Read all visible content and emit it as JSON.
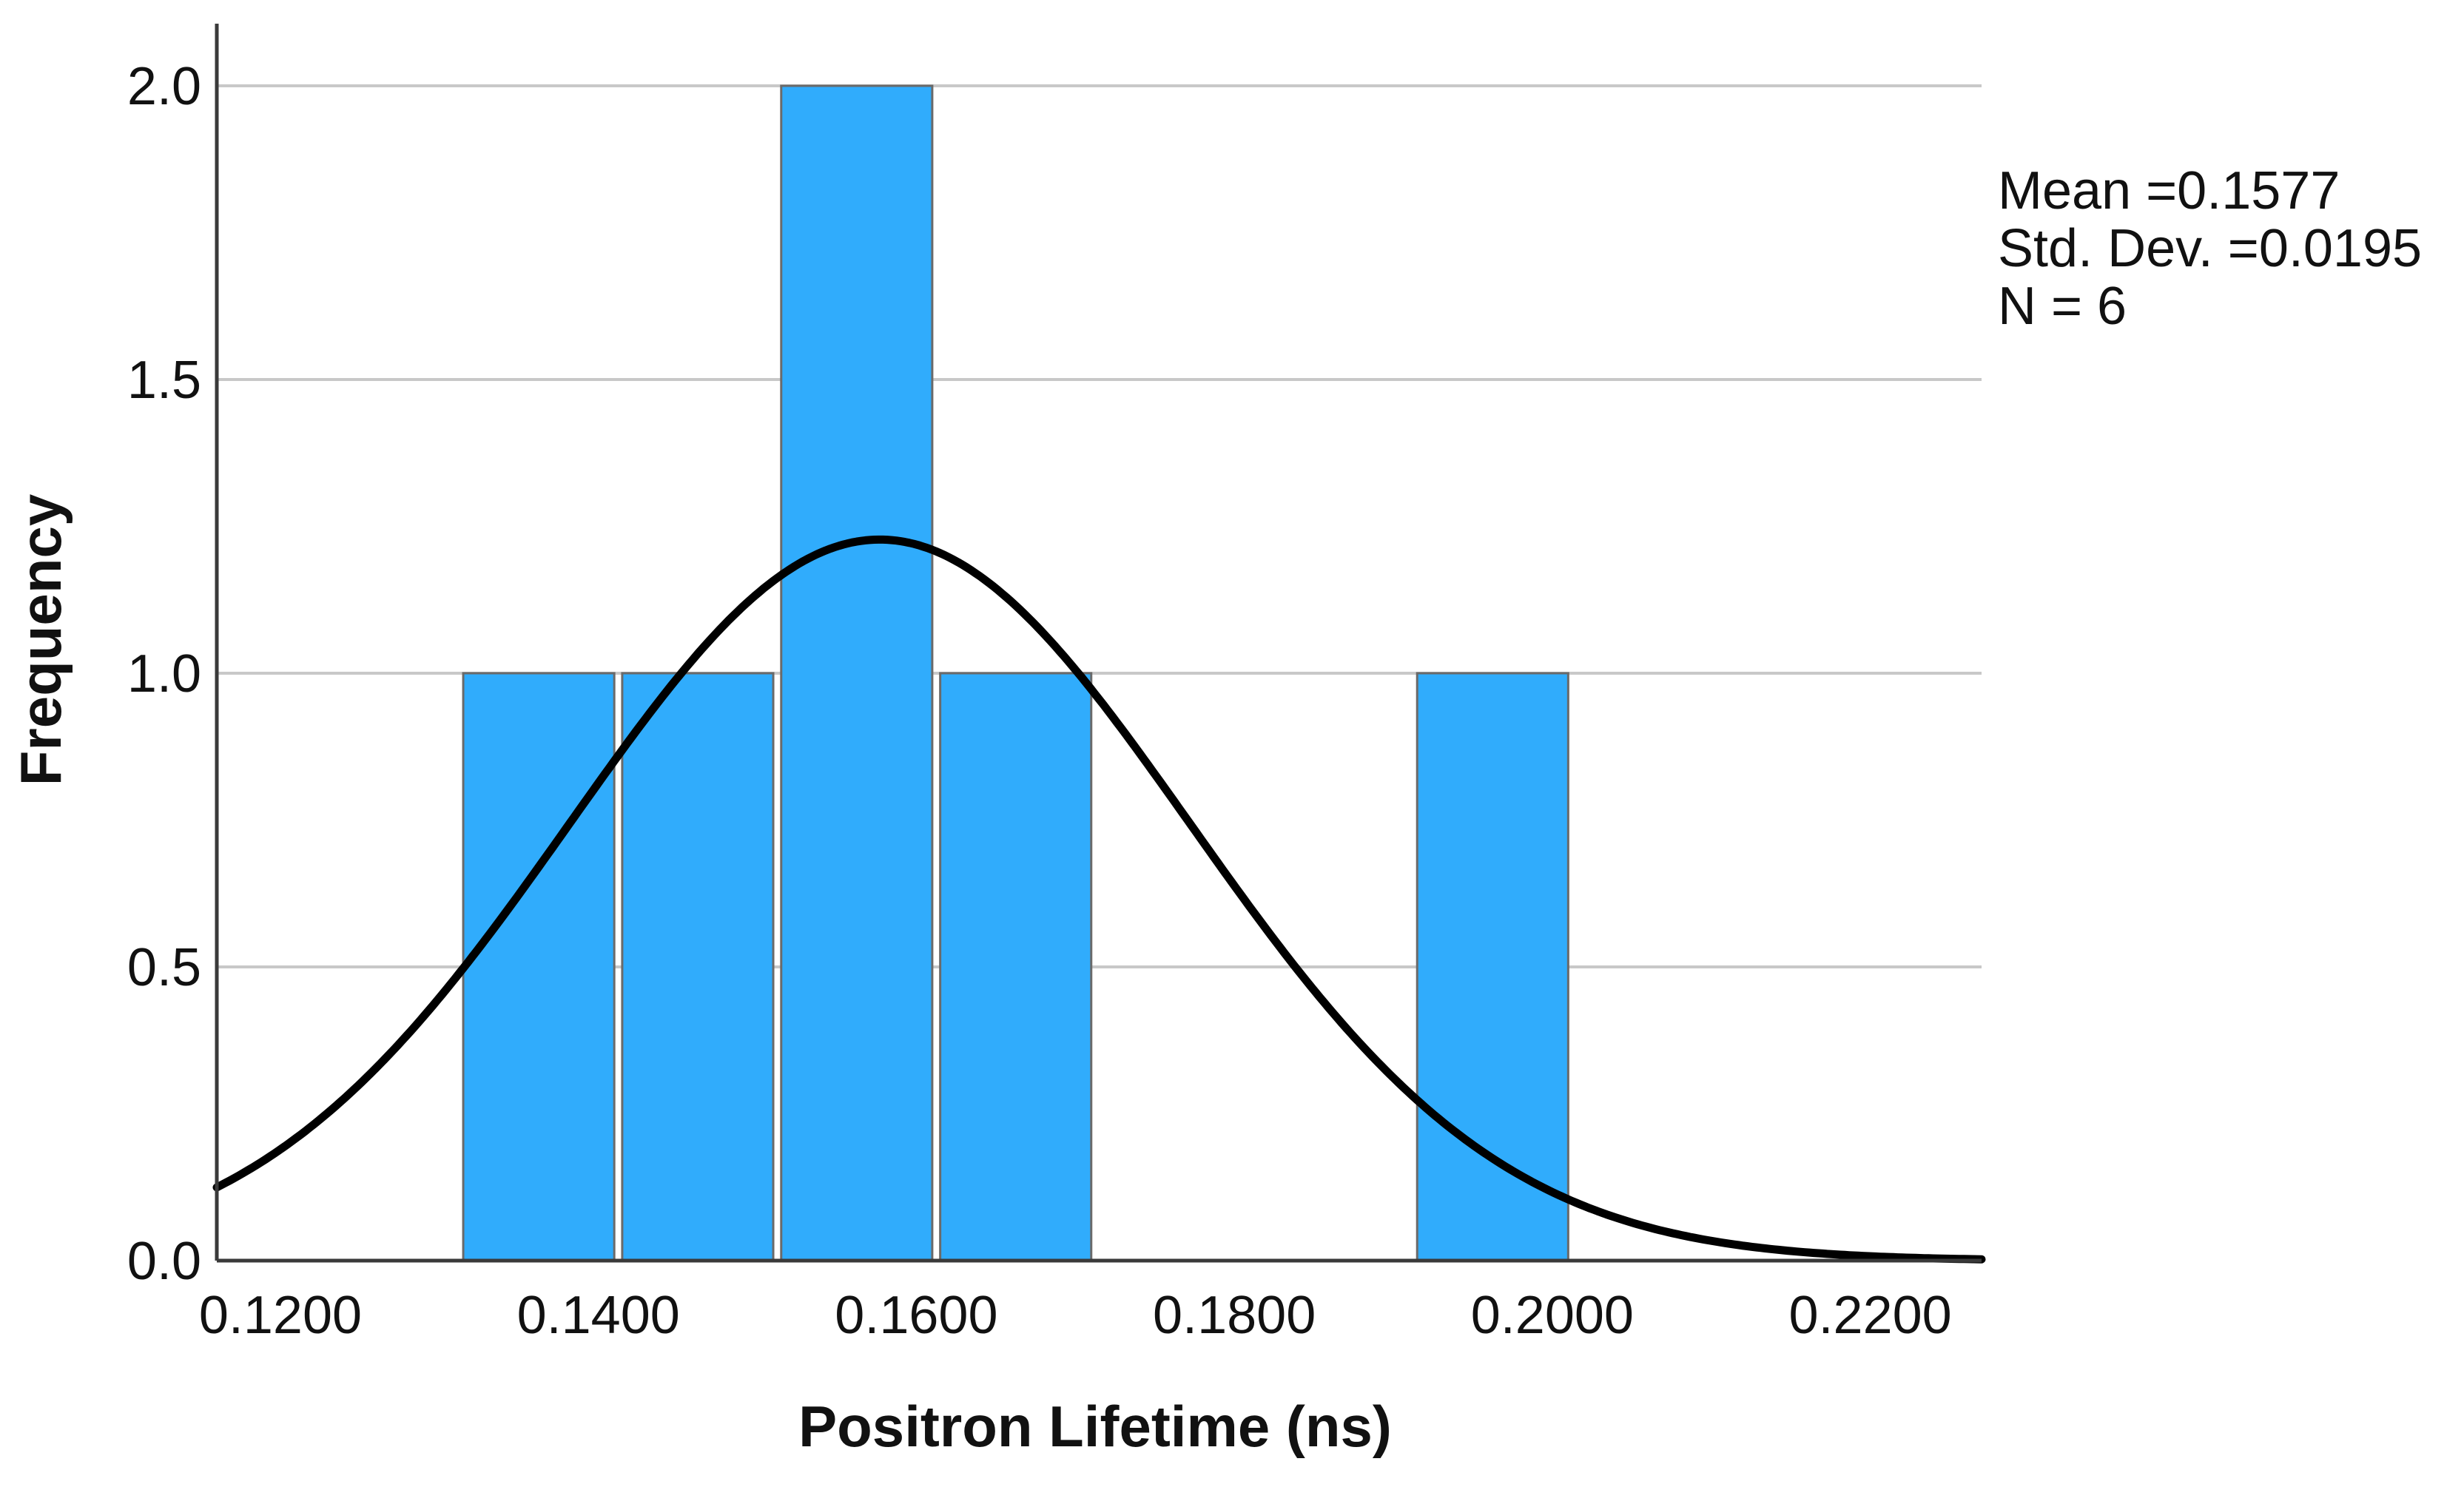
{
  "chart_data": {
    "type": "bar",
    "subtype": "histogram",
    "title": "",
    "xlabel": "Positron Lifetime (ns)",
    "ylabel": "Frequency",
    "xlim": [
      0.116,
      0.227
    ],
    "ylim": [
      0,
      2.1
    ],
    "x_ticks": [
      {
        "value": 0.12,
        "label": "0.1200"
      },
      {
        "value": 0.14,
        "label": "0.1400"
      },
      {
        "value": 0.16,
        "label": "0.1600"
      },
      {
        "value": 0.18,
        "label": "0.1800"
      },
      {
        "value": 0.2,
        "label": "0.2000"
      },
      {
        "value": 0.22,
        "label": "0.2200"
      }
    ],
    "y_ticks": [
      {
        "value": 0.0,
        "label": "0.0"
      },
      {
        "value": 0.5,
        "label": "0.5"
      },
      {
        "value": 1.0,
        "label": "1.0"
      },
      {
        "value": 1.5,
        "label": "1.5"
      },
      {
        "value": 2.0,
        "label": "2.0"
      }
    ],
    "grid": true,
    "bins": [
      {
        "start": 0.1315,
        "end": 0.141,
        "count": 1
      },
      {
        "start": 0.1415,
        "end": 0.151,
        "count": 1
      },
      {
        "start": 0.1515,
        "end": 0.161,
        "count": 2
      },
      {
        "start": 0.1615,
        "end": 0.171,
        "count": 1
      },
      {
        "start": 0.1915,
        "end": 0.201,
        "count": 1
      }
    ],
    "normal_curve": {
      "mean": 0.1577,
      "std_dev": 0.0195,
      "n": 6,
      "bin_width": 0.01
    },
    "stats": {
      "mean_label": "Mean =",
      "mean_value": "0.1577",
      "std_label": "Std. Dev. =",
      "std_value": "0.0195",
      "n_label": "N = 6"
    },
    "colors": {
      "bar_fill": "#30acfc",
      "bar_stroke": "#6a6a6a",
      "curve": "#000000",
      "grid": "#c8c8c8"
    }
  }
}
